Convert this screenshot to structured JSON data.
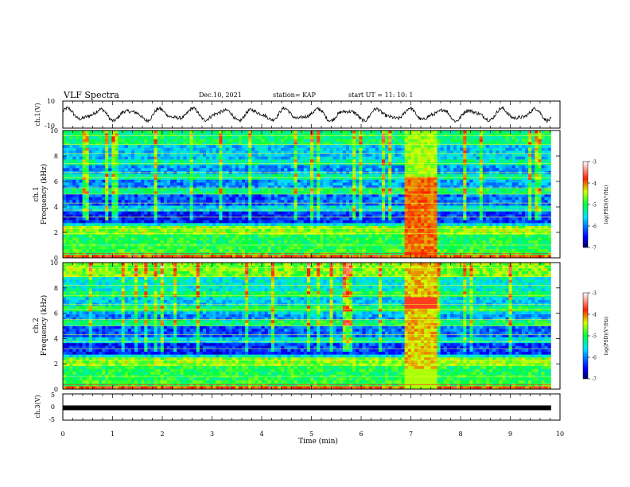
{
  "header": {
    "title": "VLF Spectra",
    "date": "Dec.10, 2021",
    "station": "station= KAP",
    "start": "start  UT =   11: 10: 1"
  },
  "chart_data": [
    {
      "type": "line",
      "panel": "ch1-waveform",
      "ylabel": "ch.1(V)",
      "ylim": [
        -10,
        10
      ],
      "yticks": [
        "10",
        "-10"
      ],
      "xlim": [
        0,
        10
      ],
      "series": [
        {
          "values_description_free": true
        }
      ]
    },
    {
      "type": "heatmap",
      "panel": "ch1-spectrogram",
      "ylabel": "ch.1\nFrequency (kHz)",
      "ylabel_line1": "ch.1",
      "ylabel_line2": "Frequency (kHz)",
      "ylim": [
        0,
        10
      ],
      "yticks": [
        "0",
        "2",
        "4",
        "6",
        "8",
        "10"
      ],
      "xlim": [
        0,
        10
      ],
      "colorbar": {
        "label": "log(PSD)(V²/Hz)",
        "range": [
          -7,
          -3
        ],
        "ticks": [
          "-3",
          "-4",
          "-5",
          "-6",
          "-7"
        ]
      },
      "burst_minutes": [
        6.9,
        7.5
      ]
    },
    {
      "type": "heatmap",
      "panel": "ch2-spectrogram",
      "ylabel_line1": "ch.2",
      "ylabel_line2": "Frequency (kHz)",
      "ylim": [
        0,
        10
      ],
      "yticks": [
        "0",
        "2",
        "4",
        "6",
        "8",
        "10"
      ],
      "xlim": [
        0,
        10
      ],
      "colorbar": {
        "label": "log(PSD)(V²/Hz)",
        "range": [
          -7,
          -3
        ],
        "ticks": [
          "-3",
          "-4",
          "-5",
          "-6",
          "-7"
        ]
      },
      "burst_minutes": [
        6.9,
        7.5
      ]
    },
    {
      "type": "line",
      "panel": "ch3-waveform",
      "ylabel": "ch.3(V)",
      "ylim": [
        -5,
        5
      ],
      "yticks": [
        "5",
        "0",
        "-5"
      ],
      "xlim": [
        0,
        10
      ],
      "level": -0.3
    }
  ],
  "xaxis": {
    "label": "Time  (min)",
    "ticks": [
      "0",
      "1",
      "2",
      "3",
      "4",
      "5",
      "6",
      "7",
      "8",
      "9",
      "10"
    ],
    "data_end": 9.82
  },
  "colors": {
    "scale": [
      "#000080",
      "#0000ff",
      "#00ffff",
      "#00ff00",
      "#ffff00",
      "#ff0000",
      "#ffffff"
    ]
  }
}
